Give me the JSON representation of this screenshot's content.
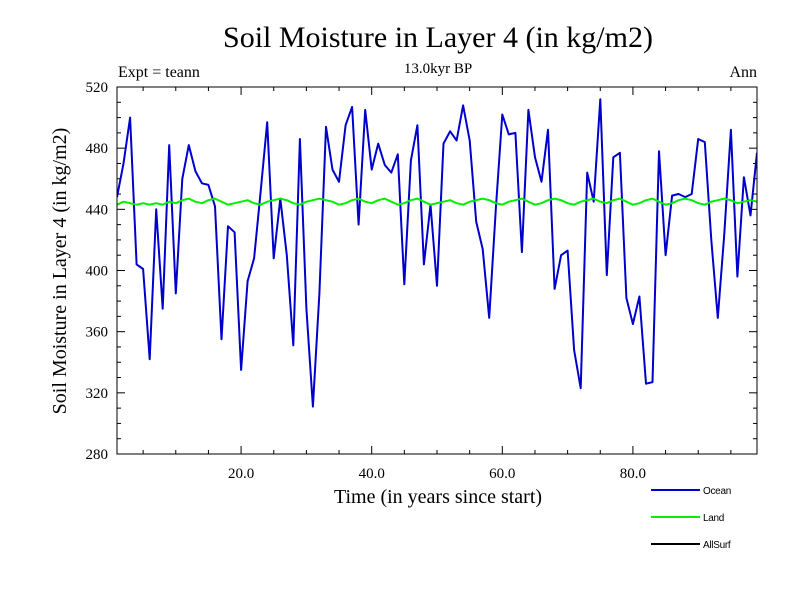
{
  "chart_data": {
    "type": "line",
    "title": "Soil Moisture in Layer 4 (in kg/m2)",
    "subtitle": "13.0kyr BP",
    "left_label": "Expt = teann",
    "right_label": "Ann",
    "xlabel": "Time (in years since start)",
    "ylabel": "Soil Moisture in Layer 4 (in kg/m2)",
    "xlim": [
      1,
      99
    ],
    "ylim": [
      280,
      520
    ],
    "xticks": [
      20,
      40,
      60,
      80
    ],
    "xtick_labels": [
      "20.0",
      "40.0",
      "60.0",
      "80.0"
    ],
    "yticks": [
      280,
      320,
      360,
      400,
      440,
      480,
      520
    ],
    "ytick_labels": [
      "280",
      "320",
      "360",
      "400",
      "440",
      "480",
      "520"
    ],
    "legend_position": "bottom-right",
    "series": [
      {
        "name": "Ocean",
        "color": "#0000cc",
        "x_start": 1,
        "x_step": 1,
        "values": [
          448,
          470,
          500,
          404,
          401,
          342,
          440,
          375,
          482,
          385,
          460,
          482,
          465,
          457,
          456,
          442,
          355,
          429,
          425,
          335,
          393,
          408,
          452,
          497,
          408,
          447,
          410,
          351,
          486,
          375,
          311,
          385,
          494,
          466,
          458,
          495,
          507,
          430,
          505,
          466,
          483,
          469,
          464,
          476,
          391,
          472,
          495,
          404,
          443,
          390,
          483,
          491,
          485,
          508,
          485,
          432,
          414,
          369,
          440,
          502,
          489,
          490,
          412,
          505,
          474,
          458,
          492,
          388,
          410,
          413,
          348,
          323,
          464,
          445,
          512,
          397,
          474,
          477,
          382,
          365,
          383,
          326,
          327,
          478,
          410,
          449,
          450,
          448,
          450,
          486,
          484,
          420,
          369,
          424,
          492,
          396,
          461,
          436,
          477
        ]
      },
      {
        "name": "Land",
        "color": "#00ee00",
        "x_start": 1,
        "x_step": 1,
        "values": [
          443,
          445,
          444,
          443,
          444,
          443,
          444,
          443,
          445,
          444,
          446,
          447,
          445,
          444,
          446,
          447,
          445,
          443,
          444,
          445,
          446,
          444,
          443,
          445,
          446,
          447,
          446,
          444,
          443,
          445,
          446,
          447,
          446,
          445,
          443,
          444,
          446,
          447,
          445,
          444,
          446,
          447,
          445,
          443,
          444,
          446,
          447,
          445,
          443,
          444,
          445,
          446,
          444,
          443,
          445,
          446,
          447,
          446,
          444,
          443,
          445,
          446,
          447,
          445,
          443,
          444,
          446,
          447,
          446,
          444,
          443,
          445,
          446,
          447,
          445,
          444,
          446,
          447,
          445,
          443,
          444,
          446,
          447,
          445,
          443,
          444,
          446,
          447,
          446,
          444,
          443,
          445,
          446,
          447,
          446,
          444,
          445,
          446,
          445
        ]
      },
      {
        "name": "AllSurf",
        "color": "#000000",
        "values": []
      }
    ]
  }
}
